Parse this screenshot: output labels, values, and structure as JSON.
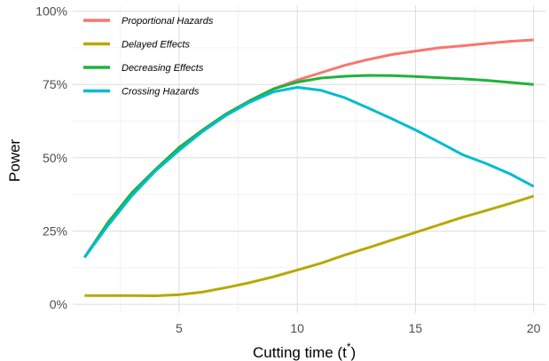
{
  "chart_data": {
    "type": "line",
    "xlabel": "Cutting time (t",
    "xlabel_superscript": "*",
    "xlabel_suffix": ")",
    "ylabel": "Power",
    "xlim": [
      0.5,
      20.5
    ],
    "ylim": [
      -0.03,
      1.02
    ],
    "x_ticks": [
      5,
      10,
      15,
      20
    ],
    "x_tick_labels": [
      "5",
      "10",
      "15",
      "20"
    ],
    "x_minor_ticks": [
      2.5,
      7.5,
      12.5,
      17.5
    ],
    "y_ticks": [
      0,
      0.25,
      0.5,
      0.75,
      1.0
    ],
    "y_tick_labels": [
      "0%",
      "25%",
      "50%",
      "75%",
      "100%"
    ],
    "y_minor_ticks": [
      0.125,
      0.375,
      0.625,
      0.875
    ],
    "grid": true,
    "legend_position": "top-left",
    "x": [
      1,
      2,
      3,
      4,
      5,
      6,
      7,
      8,
      9,
      10,
      11,
      12,
      13,
      14,
      15,
      16,
      17,
      18,
      19,
      20
    ],
    "series": [
      {
        "name": "Proportional Hazards",
        "color": "#F8766D",
        "values": [
          0.16,
          0.28,
          0.38,
          0.46,
          0.535,
          0.595,
          0.65,
          0.695,
          0.735,
          0.765,
          0.79,
          0.815,
          0.835,
          0.852,
          0.864,
          0.875,
          0.882,
          0.89,
          0.897,
          0.902
        ]
      },
      {
        "name": "Delayed Effects",
        "color": "#B8A800",
        "values": [
          0.03,
          0.03,
          0.03,
          0.029,
          0.033,
          0.042,
          0.057,
          0.074,
          0.094,
          0.117,
          0.14,
          0.168,
          0.193,
          0.219,
          0.245,
          0.271,
          0.297,
          0.32,
          0.344,
          0.369
        ]
      },
      {
        "name": "Decreasing Effects",
        "color": "#1FB33A",
        "values": [
          0.16,
          0.28,
          0.38,
          0.46,
          0.535,
          0.595,
          0.65,
          0.695,
          0.735,
          0.758,
          0.772,
          0.778,
          0.781,
          0.78,
          0.777,
          0.773,
          0.769,
          0.764,
          0.757,
          0.75
        ]
      },
      {
        "name": "Crossing Hazards",
        "color": "#00BCD0",
        "values": [
          0.16,
          0.27,
          0.37,
          0.455,
          0.525,
          0.59,
          0.645,
          0.69,
          0.725,
          0.74,
          0.73,
          0.705,
          0.67,
          0.633,
          0.595,
          0.553,
          0.51,
          0.48,
          0.445,
          0.402
        ]
      }
    ]
  }
}
